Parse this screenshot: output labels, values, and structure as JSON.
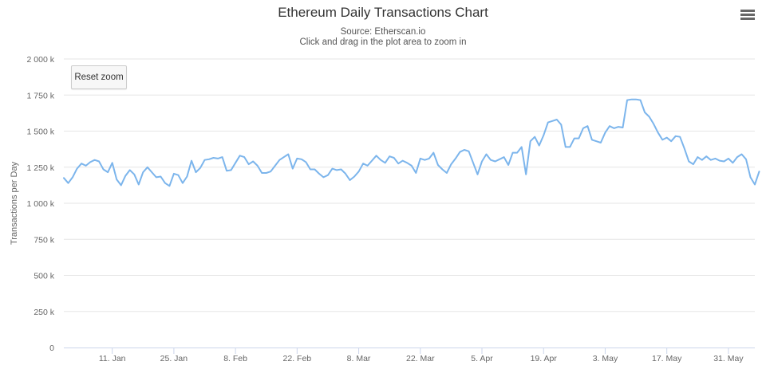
{
  "chart_data": {
    "type": "line",
    "title": "Ethereum Daily Transactions Chart",
    "subtitle": "Source: Etherscan.io",
    "subtitle2": "Click and drag in the plot area to zoom in",
    "ylabel": "Transactions per Day",
    "ylim": [
      0,
      2000000
    ],
    "yticks": [
      {
        "value": 0,
        "label": "0"
      },
      {
        "value": 250000,
        "label": "250 k"
      },
      {
        "value": 500000,
        "label": "500 k"
      },
      {
        "value": 750000,
        "label": "750 k"
      },
      {
        "value": 1000000,
        "label": "1 000 k"
      },
      {
        "value": 1250000,
        "label": "1 250 k"
      },
      {
        "value": 1500000,
        "label": "1 500 k"
      },
      {
        "value": 1750000,
        "label": "1 750 k"
      },
      {
        "value": 2000000,
        "label": "2 000 k"
      }
    ],
    "xticks": [
      {
        "x": 11,
        "label": "11. Jan"
      },
      {
        "x": 25,
        "label": "25. Jan"
      },
      {
        "x": 39,
        "label": "8. Feb"
      },
      {
        "x": 53,
        "label": "22. Feb"
      },
      {
        "x": 67,
        "label": "8. Mar"
      },
      {
        "x": 81,
        "label": "22. Mar"
      },
      {
        "x": 95,
        "label": "5. Apr"
      },
      {
        "x": 109,
        "label": "19. Apr"
      },
      {
        "x": 123,
        "label": "3. May"
      },
      {
        "x": 137,
        "label": "17. May"
      },
      {
        "x": 151,
        "label": "31. May"
      }
    ],
    "xlim": [
      0,
      157
    ],
    "grid": true,
    "legend": "none",
    "line_color": "#7cb5ec",
    "series": [
      {
        "values": [
          1175000,
          1140000,
          1180000,
          1240000,
          1275000,
          1260000,
          1285000,
          1300000,
          1290000,
          1235000,
          1215000,
          1280000,
          1165000,
          1125000,
          1190000,
          1230000,
          1200000,
          1130000,
          1215000,
          1250000,
          1215000,
          1180000,
          1185000,
          1140000,
          1120000,
          1205000,
          1195000,
          1140000,
          1185000,
          1295000,
          1215000,
          1245000,
          1300000,
          1305000,
          1315000,
          1310000,
          1320000,
          1225000,
          1230000,
          1280000,
          1330000,
          1320000,
          1270000,
          1290000,
          1260000,
          1210000,
          1210000,
          1220000,
          1260000,
          1300000,
          1320000,
          1340000,
          1240000,
          1310000,
          1305000,
          1285000,
          1235000,
          1235000,
          1205000,
          1180000,
          1195000,
          1240000,
          1230000,
          1235000,
          1205000,
          1160000,
          1185000,
          1220000,
          1275000,
          1260000,
          1295000,
          1330000,
          1300000,
          1280000,
          1325000,
          1315000,
          1275000,
          1295000,
          1280000,
          1260000,
          1210000,
          1310000,
          1300000,
          1310000,
          1350000,
          1265000,
          1235000,
          1210000,
          1270000,
          1310000,
          1355000,
          1370000,
          1360000,
          1280000,
          1200000,
          1290000,
          1340000,
          1300000,
          1290000,
          1305000,
          1320000,
          1265000,
          1350000,
          1350000,
          1390000,
          1200000,
          1430000,
          1460000,
          1400000,
          1470000,
          1560000,
          1570000,
          1580000,
          1545000,
          1390000,
          1390000,
          1450000,
          1450000,
          1520000,
          1535000,
          1440000,
          1430000,
          1420000,
          1490000,
          1535000,
          1520000,
          1530000,
          1525000,
          1715000,
          1720000,
          1720000,
          1715000,
          1630000,
          1600000,
          1550000,
          1490000,
          1440000,
          1455000,
          1430000,
          1465000,
          1460000,
          1380000,
          1290000,
          1270000,
          1320000,
          1300000,
          1325000,
          1300000,
          1310000,
          1295000,
          1290000,
          1310000,
          1280000,
          1320000,
          1340000,
          1305000,
          1180000,
          1130000,
          1220000
        ]
      }
    ]
  },
  "reset_zoom_label": "Reset zoom"
}
